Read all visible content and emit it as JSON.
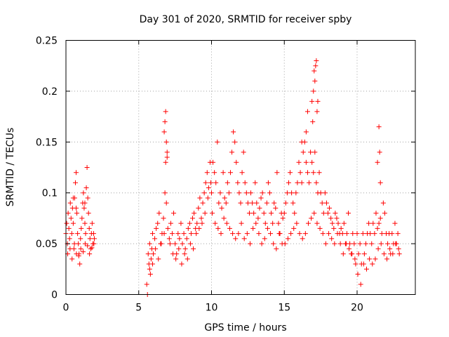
{
  "chart_data": {
    "type": "scatter",
    "title": "Day 301 of 2020, SRMTID for receiver spby",
    "xlabel": "GPS time / hours",
    "ylabel": "SRMTID / TECUs",
    "xlim": [
      0,
      24
    ],
    "ylim": [
      0,
      0.25
    ],
    "xticks": [
      0,
      5,
      10,
      15,
      20
    ],
    "xtick_labels": [
      "0",
      "5",
      "10",
      "15",
      "20"
    ],
    "yticks": [
      0,
      0.05,
      0.1,
      0.15,
      0.2,
      0.25
    ],
    "ytick_labels": [
      "0",
      "0.05",
      "0.1",
      "0.15",
      "0.2",
      "0.25"
    ],
    "grid": true,
    "marker": "+",
    "color": "#ff0000",
    "series": [
      {
        "name": "SRMTID",
        "x": [
          0.0,
          0.05,
          0.1,
          0.15,
          0.2,
          0.25,
          0.3,
          0.35,
          0.4,
          0.45,
          0.5,
          0.55,
          0.6,
          0.65,
          0.7,
          0.75,
          0.8,
          0.85,
          0.9,
          0.95,
          1.0,
          1.05,
          1.1,
          1.15,
          1.2,
          1.25,
          1.3,
          1.35,
          1.4,
          1.45,
          1.5,
          1.55,
          1.6,
          1.65,
          1.7,
          1.75,
          1.8,
          1.85,
          1.9,
          1.95,
          0.12,
          0.28,
          0.42,
          0.58,
          0.72,
          0.88,
          1.02,
          1.18,
          1.32,
          1.48,
          1.62,
          1.78,
          1.92,
          0.5,
          0.7,
          1.3,
          5.6,
          5.65,
          5.7,
          5.75,
          5.8,
          5.85,
          5.9,
          5.95,
          6.0,
          6.1,
          6.2,
          6.3,
          6.4,
          6.5,
          6.6,
          6.7,
          6.8,
          6.9,
          7.0,
          7.1,
          7.2,
          7.3,
          7.4,
          7.5,
          7.6,
          7.7,
          7.8,
          7.9,
          8.0,
          8.1,
          8.2,
          8.3,
          8.4,
          8.5,
          8.6,
          8.7,
          8.8,
          8.9,
          9.0,
          9.1,
          9.2,
          9.3,
          9.4,
          9.5,
          9.6,
          9.7,
          9.8,
          9.9,
          5.55,
          5.75,
          5.95,
          6.15,
          6.35,
          6.55,
          6.75,
          6.85,
          6.95,
          7.15,
          7.35,
          7.55,
          7.75,
          7.95,
          8.15,
          8.35,
          8.55,
          8.75,
          8.95,
          9.15,
          9.35,
          9.55,
          9.75,
          9.95,
          6.8,
          6.85,
          6.9,
          6.75,
          6.95,
          10.0,
          10.1,
          10.2,
          10.3,
          10.4,
          10.5,
          10.6,
          10.7,
          10.8,
          10.9,
          11.0,
          11.1,
          11.2,
          11.3,
          11.4,
          11.5,
          11.6,
          11.7,
          11.8,
          11.9,
          12.0,
          12.1,
          12.2,
          12.3,
          12.4,
          12.5,
          12.6,
          12.7,
          12.8,
          12.9,
          13.0,
          13.1,
          13.2,
          13.3,
          13.4,
          13.5,
          13.6,
          13.7,
          13.8,
          13.9,
          14.0,
          14.1,
          14.2,
          14.3,
          14.4,
          14.5,
          14.6,
          14.7,
          14.8,
          14.9,
          10.05,
          10.25,
          10.45,
          10.65,
          10.85,
          11.05,
          11.25,
          11.45,
          11.65,
          11.85,
          12.05,
          12.25,
          12.45,
          12.65,
          12.85,
          13.05,
          13.25,
          13.45,
          13.65,
          13.85,
          14.05,
          14.25,
          14.45,
          14.65,
          14.85,
          15.0,
          15.1,
          15.2,
          15.3,
          15.4,
          15.5,
          15.6,
          15.7,
          15.8,
          15.9,
          16.0,
          16.1,
          16.2,
          16.3,
          16.4,
          16.5,
          16.6,
          16.7,
          16.8,
          16.9,
          17.0,
          17.1,
          17.2,
          17.3,
          17.4,
          17.5,
          17.6,
          17.7,
          17.8,
          17.9,
          18.0,
          18.1,
          18.2,
          18.3,
          18.4,
          18.5,
          18.6,
          18.7,
          18.8,
          18.9,
          15.05,
          15.25,
          15.45,
          15.65,
          15.85,
          16.05,
          16.25,
          16.45,
          16.65,
          16.85,
          17.05,
          17.25,
          17.45,
          17.65,
          17.85,
          18.05,
          18.25,
          18.45,
          18.65,
          18.85,
          16.2,
          16.5,
          16.6,
          16.9,
          17.0,
          17.05,
          17.1,
          17.2,
          17.25,
          17.3,
          17.15,
          16.95,
          19.0,
          19.1,
          19.2,
          19.3,
          19.4,
          19.5,
          19.6,
          19.7,
          19.8,
          19.9,
          20.0,
          20.1,
          20.2,
          20.3,
          20.4,
          20.5,
          20.6,
          20.7,
          20.8,
          20.9,
          21.0,
          21.1,
          21.2,
          21.3,
          21.4,
          21.5,
          21.6,
          21.7,
          21.8,
          21.9,
          22.0,
          22.1,
          22.2,
          22.3,
          22.4,
          22.5,
          22.6,
          22.7,
          22.8,
          22.9,
          19.05,
          19.25,
          19.45,
          19.65,
          19.85,
          20.05,
          20.25,
          20.45,
          20.65,
          20.85,
          21.05,
          21.25,
          21.45,
          21.65,
          21.85,
          22.05,
          22.25,
          22.45,
          22.65,
          22.85,
          21.4,
          21.55,
          21.6,
          21.5
        ],
        "y": [
          0.06,
          0.07,
          0.05,
          0.08,
          0.065,
          0.055,
          0.09,
          0.075,
          0.06,
          0.085,
          0.07,
          0.045,
          0.095,
          0.11,
          0.12,
          0.08,
          0.06,
          0.05,
          0.04,
          0.03,
          0.055,
          0.065,
          0.075,
          0.09,
          0.1,
          0.085,
          0.07,
          0.06,
          0.105,
          0.125,
          0.095,
          0.08,
          0.065,
          0.055,
          0.045,
          0.06,
          0.07,
          0.05,
          0.06,
          0.055,
          0.04,
          0.045,
          0.035,
          0.05,
          0.04,
          0.038,
          0.045,
          0.042,
          0.05,
          0.048,
          0.04,
          0.046,
          0.05,
          0.095,
          0.085,
          0.09,
          0.0,
          0.04,
          0.03,
          0.05,
          0.02,
          0.035,
          0.045,
          0.06,
          0.04,
          0.055,
          0.065,
          0.07,
          0.08,
          0.05,
          0.06,
          0.075,
          0.1,
          0.09,
          0.065,
          0.055,
          0.07,
          0.06,
          0.08,
          0.05,
          0.04,
          0.06,
          0.055,
          0.07,
          0.05,
          0.06,
          0.045,
          0.055,
          0.065,
          0.07,
          0.06,
          0.075,
          0.08,
          0.065,
          0.07,
          0.085,
          0.095,
          0.075,
          0.09,
          0.1,
          0.11,
          0.12,
          0.105,
          0.13,
          0.01,
          0.025,
          0.03,
          0.045,
          0.035,
          0.05,
          0.06,
          0.13,
          0.14,
          0.05,
          0.04,
          0.035,
          0.045,
          0.03,
          0.04,
          0.035,
          0.05,
          0.045,
          0.06,
          0.065,
          0.07,
          0.08,
          0.095,
          0.11,
          0.17,
          0.18,
          0.15,
          0.16,
          0.135,
          0.1,
          0.13,
          0.12,
          0.11,
          0.15,
          0.09,
          0.1,
          0.085,
          0.12,
          0.095,
          0.09,
          0.11,
          0.1,
          0.12,
          0.14,
          0.16,
          0.15,
          0.13,
          0.11,
          0.1,
          0.09,
          0.12,
          0.14,
          0.11,
          0.1,
          0.09,
          0.08,
          0.1,
          0.09,
          0.08,
          0.11,
          0.09,
          0.075,
          0.085,
          0.095,
          0.1,
          0.08,
          0.07,
          0.09,
          0.11,
          0.1,
          0.08,
          0.07,
          0.09,
          0.085,
          0.12,
          0.07,
          0.06,
          0.08,
          0.075,
          0.08,
          0.07,
          0.065,
          0.06,
          0.075,
          0.07,
          0.065,
          0.06,
          0.055,
          0.06,
          0.07,
          0.055,
          0.06,
          0.05,
          0.065,
          0.07,
          0.06,
          0.05,
          0.055,
          0.065,
          0.06,
          0.05,
          0.045,
          0.06,
          0.05,
          0.08,
          0.09,
          0.1,
          0.11,
          0.12,
          0.1,
          0.09,
          0.08,
          0.1,
          0.11,
          0.13,
          0.12,
          0.11,
          0.14,
          0.15,
          0.13,
          0.12,
          0.11,
          0.14,
          0.13,
          0.12,
          0.14,
          0.11,
          0.1,
          0.12,
          0.1,
          0.09,
          0.08,
          0.1,
          0.09,
          0.08,
          0.085,
          0.075,
          0.07,
          0.065,
          0.08,
          0.075,
          0.07,
          0.06,
          0.065,
          0.05,
          0.055,
          0.06,
          0.065,
          0.07,
          0.06,
          0.055,
          0.06,
          0.07,
          0.075,
          0.08,
          0.07,
          0.065,
          0.06,
          0.05,
          0.06,
          0.055,
          0.05,
          0.06,
          0.05,
          0.15,
          0.16,
          0.18,
          0.19,
          0.2,
          0.22,
          0.21,
          0.23,
          0.18,
          0.19,
          0.225,
          0.17,
          0.06,
          0.07,
          0.05,
          0.06,
          0.08,
          0.05,
          0.04,
          0.06,
          0.05,
          0.03,
          0.06,
          0.04,
          0.05,
          0.03,
          0.06,
          0.04,
          0.05,
          0.06,
          0.07,
          0.06,
          0.05,
          0.07,
          0.06,
          0.08,
          0.065,
          0.07,
          0.075,
          0.06,
          0.09,
          0.08,
          0.06,
          0.05,
          0.06,
          0.04,
          0.06,
          0.05,
          0.07,
          0.05,
          0.06,
          0.04,
          0.04,
          0.05,
          0.045,
          0.04,
          0.035,
          0.02,
          0.01,
          0.03,
          0.025,
          0.035,
          0.03,
          0.035,
          0.045,
          0.05,
          0.04,
          0.035,
          0.045,
          0.04,
          0.05,
          0.045,
          0.13,
          0.14,
          0.11,
          0.165
        ]
      }
    ]
  }
}
